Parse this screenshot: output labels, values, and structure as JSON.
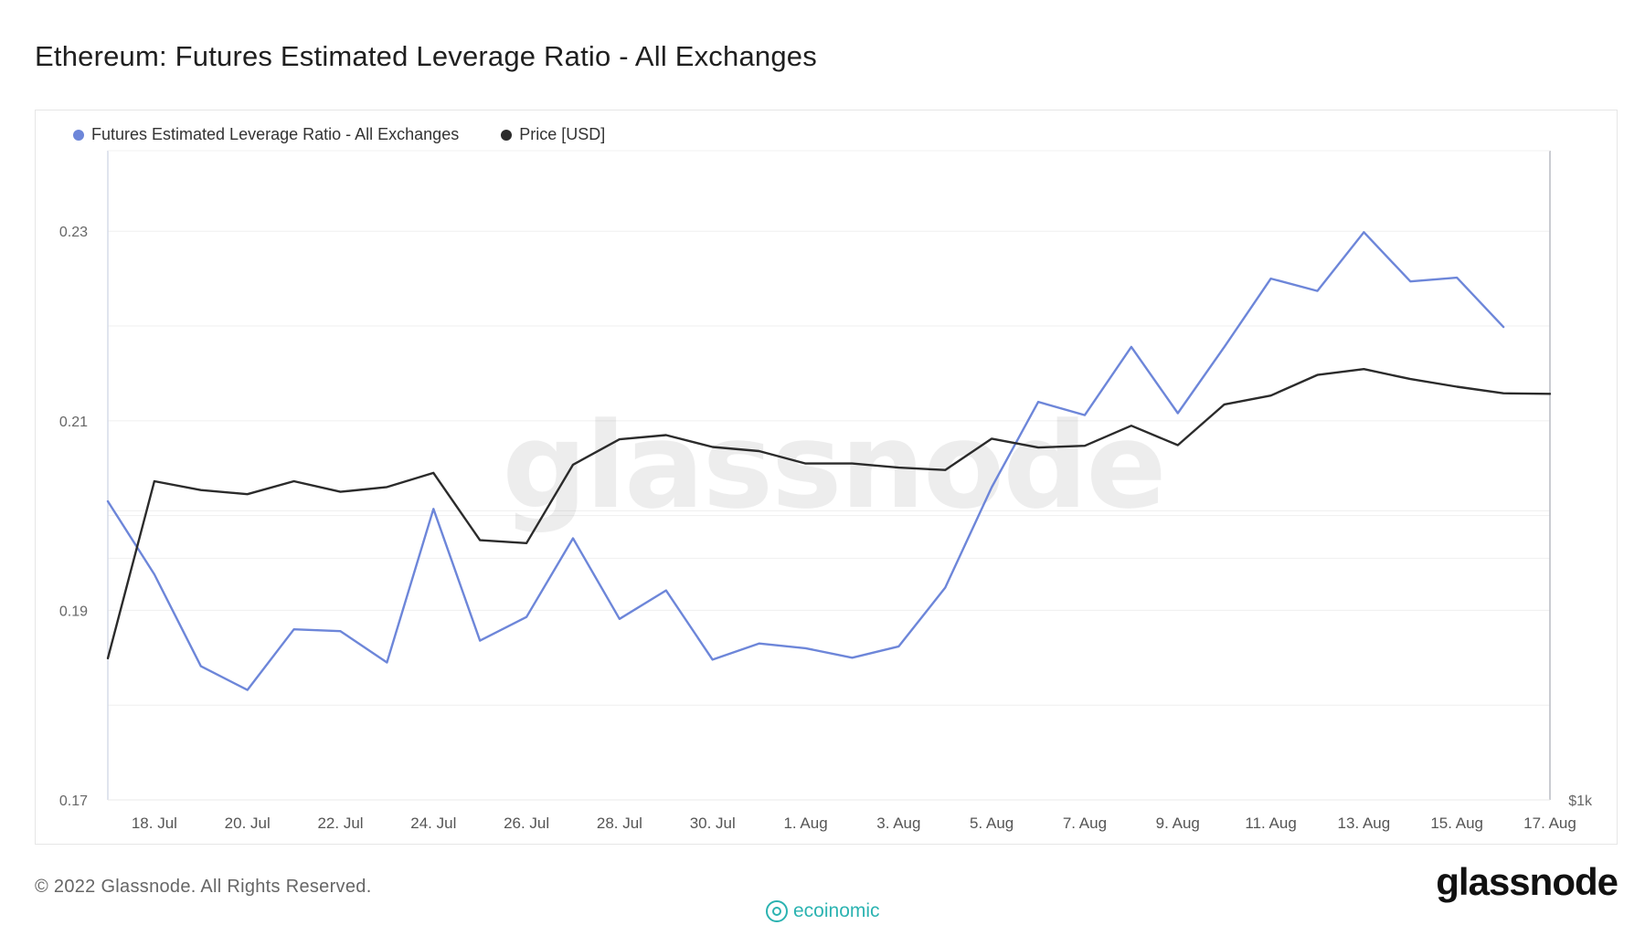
{
  "title": "Ethereum: Futures Estimated Leverage Ratio - All Exchanges",
  "footer": {
    "copyright": "© 2022 Glassnode. All Rights Reserved.",
    "brand": "glassnode",
    "partner": "ecoinomic"
  },
  "colors": {
    "leverage": "#6d86d9",
    "price": "#2b2b2b",
    "grid": "#efefef",
    "partner": "#2bb3b1"
  },
  "chart_data": {
    "type": "line",
    "watermark": "glassnode",
    "legend_position": "top-left",
    "grid": true,
    "x": [
      "17. Jul",
      "18. Jul",
      "19. Jul",
      "20. Jul",
      "21. Jul",
      "22. Jul",
      "23. Jul",
      "24. Jul",
      "25. Jul",
      "26. Jul",
      "27. Jul",
      "28. Jul",
      "29. Jul",
      "30. Jul",
      "31. Jul",
      "1. Aug",
      "2. Aug",
      "3. Aug",
      "4. Aug",
      "5. Aug",
      "6. Aug",
      "7. Aug",
      "8. Aug",
      "9. Aug",
      "10. Aug",
      "11. Aug",
      "12. Aug",
      "13. Aug",
      "14. Aug",
      "15. Aug",
      "16. Aug",
      "17. Aug"
    ],
    "x_tick_labels": [
      "18. Jul",
      "20. Jul",
      "22. Jul",
      "24. Jul",
      "26. Jul",
      "28. Jul",
      "30. Jul",
      "1. Aug",
      "3. Aug",
      "5. Aug",
      "7. Aug",
      "9. Aug",
      "11. Aug",
      "13. Aug",
      "15. Aug",
      "17. Aug"
    ],
    "y_left": {
      "ticks": [
        "0.17",
        "0.19",
        "0.21",
        "0.23"
      ],
      "range": [
        0.17,
        0.2385
      ]
    },
    "y_right": {
      "ticks": [
        "$1k"
      ],
      "range": [
        1000,
        2100
      ]
    },
    "series": [
      {
        "name": "Futures Estimated Leverage Ratio - All Exchanges",
        "axis": "left",
        "color": "#6d86d9",
        "values": [
          0.2015,
          0.1938,
          0.1841,
          0.1816,
          0.188,
          0.1878,
          0.1845,
          0.2007,
          0.1868,
          0.1893,
          0.1976,
          0.1891,
          0.1921,
          0.1848,
          0.1865,
          0.186,
          0.185,
          0.1862,
          0.1924,
          0.203,
          0.212,
          0.2106,
          0.2178,
          0.2108,
          0.2178,
          0.225,
          0.2237,
          0.2299,
          0.2247,
          0.2251,
          0.2199,
          null
        ]
      },
      {
        "name": "Price [USD]",
        "axis": "right",
        "color": "#2b2b2b",
        "values": [
          1240,
          1540,
          1525,
          1518,
          1540,
          1522,
          1530,
          1554,
          1440,
          1435,
          1568,
          1611,
          1618,
          1598,
          1591,
          1570,
          1570,
          1563,
          1559,
          1612,
          1597,
          1600,
          1634,
          1601,
          1670,
          1685,
          1720,
          1730,
          1713,
          1700,
          1689,
          1688
        ]
      }
    ]
  }
}
